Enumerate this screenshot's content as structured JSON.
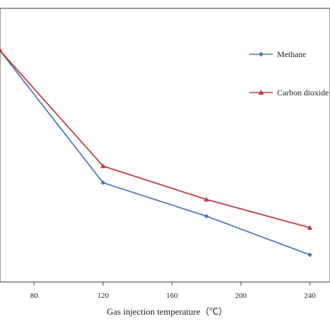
{
  "chart_data": {
    "type": "line",
    "xlabel": "Gas injection temperature（℃）",
    "ylabel": "",
    "x": [
      60,
      120,
      180,
      240
    ],
    "xlim": [
      60,
      240
    ],
    "xticks": [
      "80",
      "120",
      "160",
      "200",
      "240"
    ],
    "legend_position": "right",
    "series": [
      {
        "name": "Methane",
        "color": "#4a78c2",
        "marker": "diamond",
        "values": [
          1.0,
          0.365,
          0.205,
          0.02
        ]
      },
      {
        "name": "Carbon dioxide",
        "color": "#c0393e",
        "marker": "triangle",
        "values": [
          1.0,
          0.445,
          0.285,
          0.15
        ]
      }
    ]
  }
}
